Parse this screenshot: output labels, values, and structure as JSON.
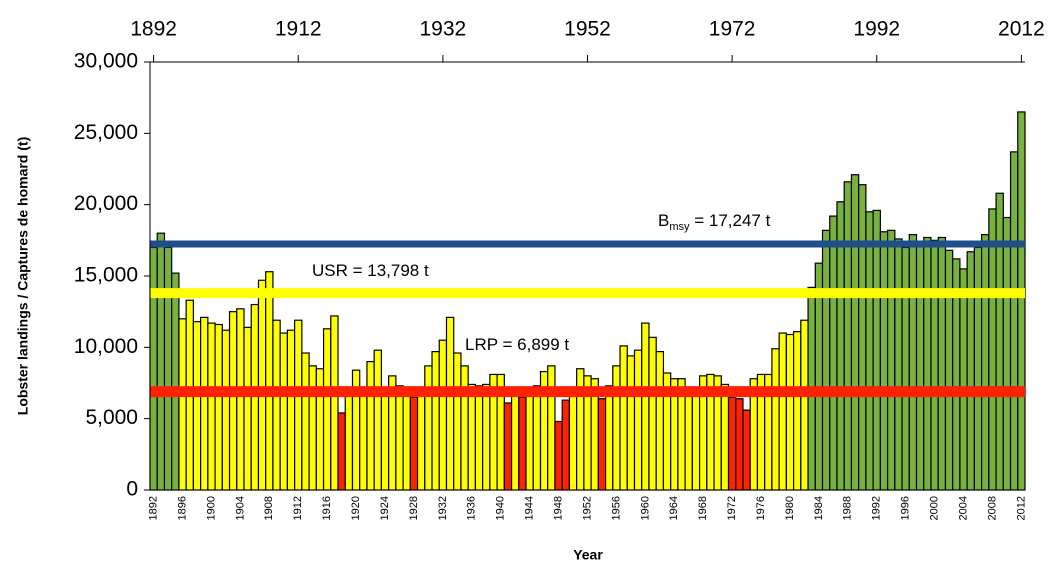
{
  "chart_data": {
    "type": "bar",
    "y_label": "Lobster landings / Captures de homard (t)",
    "x_label": "Year",
    "categories": [
      "1892",
      null,
      null,
      null,
      "1896",
      null,
      null,
      null,
      "1900",
      null,
      null,
      null,
      "1904",
      null,
      null,
      null,
      "1908",
      null,
      null,
      null,
      "1912",
      null,
      null,
      null,
      "1916",
      null,
      null,
      null,
      "1920",
      null,
      null,
      null,
      "1924",
      null,
      null,
      null,
      "1928",
      null,
      null,
      null,
      "1932",
      null,
      null,
      null,
      "1936",
      null,
      null,
      null,
      "1940",
      null,
      null,
      null,
      "1944",
      null,
      null,
      null,
      "1948",
      null,
      null,
      null,
      "1952",
      null,
      null,
      null,
      "1956",
      null,
      null,
      null,
      "1960",
      null,
      null,
      null,
      "1964",
      null,
      null,
      null,
      "1968",
      null,
      null,
      null,
      "1972",
      null,
      null,
      null,
      "1976",
      null,
      null,
      null,
      "1980",
      null,
      null,
      null,
      "1984",
      null,
      null,
      null,
      "1988",
      null,
      null,
      null,
      "1992",
      null,
      null,
      null,
      "1996",
      null,
      null,
      null,
      "2000",
      null,
      null,
      null,
      "2004",
      null,
      null,
      null,
      "2008",
      null,
      null,
      null,
      "2012"
    ],
    "values": [
      17000,
      18000,
      17000,
      15200,
      12000,
      13300,
      11800,
      12100,
      11700,
      11600,
      11200,
      12500,
      12700,
      11400,
      13000,
      14700,
      15300,
      11900,
      11000,
      11200,
      11900,
      9600,
      8700,
      8500,
      11300,
      12200,
      5400,
      7000,
      8400,
      7200,
      9000,
      9800,
      7200,
      8000,
      7300,
      7200,
      6500,
      7100,
      8700,
      9700,
      10500,
      12100,
      9600,
      8700,
      7400,
      7300,
      7400,
      8100,
      8100,
      6100,
      7100,
      6500,
      7200,
      7300,
      8300,
      8700,
      4800,
      6300,
      7000,
      8500,
      8000,
      7800,
      6400,
      7300,
      8700,
      10100,
      9400,
      9800,
      11700,
      10700,
      9700,
      8200,
      7800,
      7800,
      7200,
      7100,
      8000,
      8100,
      8000,
      7400,
      6500,
      6400,
      5600,
      7800,
      8100,
      8100,
      9900,
      11000,
      10900,
      11100,
      11900,
      14200,
      15900,
      18200,
      19200,
      20200,
      21600,
      22100,
      21400,
      19500,
      19600,
      18100,
      18200,
      17600,
      17000,
      17900,
      17100,
      17700,
      17500,
      17700,
      16800,
      16200,
      15500,
      16700,
      17000,
      17900,
      19700,
      20800,
      19100,
      23700,
      26500
    ],
    "colors": [
      "#77b140",
      "#77b140",
      "#77b140",
      "#77b140",
      "#ffff00",
      "#ffff00",
      "#ffff00",
      "#ffff00",
      "#ffff00",
      "#ffff00",
      "#ffff00",
      "#ffff00",
      "#ffff00",
      "#ffff00",
      "#ffff00",
      "#ffff00",
      "#ffff00",
      "#ffff00",
      "#ffff00",
      "#ffff00",
      "#ffff00",
      "#ffff00",
      "#ffff00",
      "#ffff00",
      "#ffff00",
      "#ffff00",
      "#ff2200",
      "#ffff00",
      "#ffff00",
      "#ffff00",
      "#ffff00",
      "#ffff00",
      "#ffff00",
      "#ffff00",
      "#ffff00",
      "#ffff00",
      "#ff2200",
      "#ffff00",
      "#ffff00",
      "#ffff00",
      "#ffff00",
      "#ffff00",
      "#ffff00",
      "#ffff00",
      "#ffff00",
      "#ffff00",
      "#ffff00",
      "#ffff00",
      "#ffff00",
      "#ff2200",
      "#ffff00",
      "#ff2200",
      "#ffff00",
      "#ffff00",
      "#ffff00",
      "#ffff00",
      "#ff2200",
      "#ff2200",
      "#ffff00",
      "#ffff00",
      "#ffff00",
      "#ffff00",
      "#ff2200",
      "#ffff00",
      "#ffff00",
      "#ffff00",
      "#ffff00",
      "#ffff00",
      "#ffff00",
      "#ffff00",
      "#ffff00",
      "#ffff00",
      "#ffff00",
      "#ffff00",
      "#ffff00",
      "#ffff00",
      "#ffff00",
      "#ffff00",
      "#ffff00",
      "#ffff00",
      "#ff2200",
      "#ff2200",
      "#ff2200",
      "#ffff00",
      "#ffff00",
      "#ffff00",
      "#ffff00",
      "#ffff00",
      "#ffff00",
      "#ffff00",
      "#ffff00",
      "#77b140",
      "#77b140",
      "#77b140",
      "#77b140",
      "#77b140",
      "#77b140",
      "#77b140",
      "#77b140",
      "#77b140",
      "#77b140",
      "#77b140",
      "#77b140",
      "#77b140",
      "#77b140",
      "#77b140",
      "#77b140",
      "#77b140",
      "#77b140",
      "#77b140",
      "#77b140",
      "#77b140",
      "#77b140",
      "#77b140",
      "#77b140",
      "#77b140",
      "#77b140",
      "#77b140",
      "#77b140",
      "#77b140",
      "#77b140"
    ],
    "ylim": [
      0,
      30000
    ],
    "yticks": [
      0,
      {
        "value": 5000,
        "label": "5,000"
      },
      {
        "value": 10000,
        "label": "10,000"
      },
      {
        "value": 15000,
        "label": "15,000"
      },
      {
        "value": 20000,
        "label": "20,000"
      },
      {
        "value": 25000,
        "label": "25,000"
      },
      {
        "value": 30000,
        "label": "30,000"
      }
    ],
    "x2lim": [
      1891.5,
      2012.5
    ],
    "x2ticks": [
      1892,
      1912,
      1932,
      1952,
      1972,
      1992,
      2012
    ],
    "reference_lines": [
      {
        "value": 17247,
        "color": "#1f4e8c",
        "label": "B",
        "label_sub": "msy",
        "label_suffix": " = 17,247 t"
      },
      {
        "value": 13798,
        "color": "#ffff00",
        "label": "USR = 13,798 t"
      },
      {
        "value": 6899,
        "color": "#ff2200",
        "label": "LRP = 6,899 t"
      }
    ]
  }
}
